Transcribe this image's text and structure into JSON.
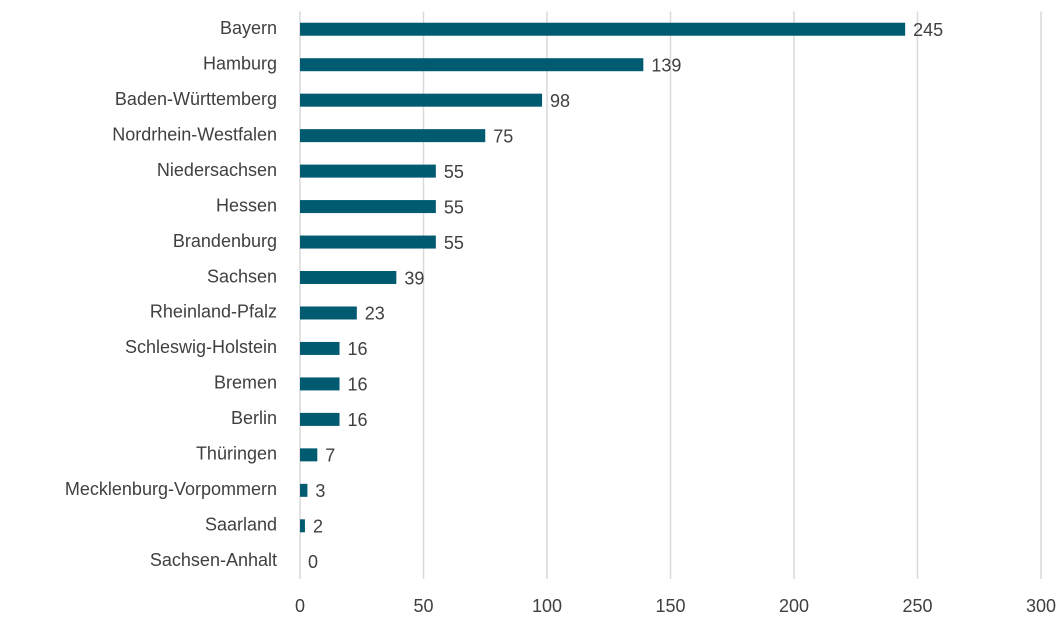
{
  "chart_data": {
    "type": "hbar",
    "categories": [
      "Bayern",
      "Hamburg",
      "Baden-Württemberg",
      "Nordrhein-Westfalen",
      "Niedersachsen",
      "Hessen",
      "Brandenburg",
      "Sachsen",
      "Rheinland-Pfalz",
      "Schleswig-Holstein",
      "Bremen",
      "Berlin",
      "Thüringen",
      "Mecklenburg-Vorpommern",
      "Saarland",
      "Sachsen-Anhalt"
    ],
    "values": [
      245,
      139,
      98,
      75,
      55,
      55,
      55,
      39,
      23,
      16,
      16,
      16,
      7,
      3,
      2,
      0
    ],
    "color": "#005a70",
    "xlim": [
      0,
      300
    ],
    "xticks": [
      0,
      50,
      100,
      150,
      200,
      250,
      300
    ],
    "grid": true
  }
}
